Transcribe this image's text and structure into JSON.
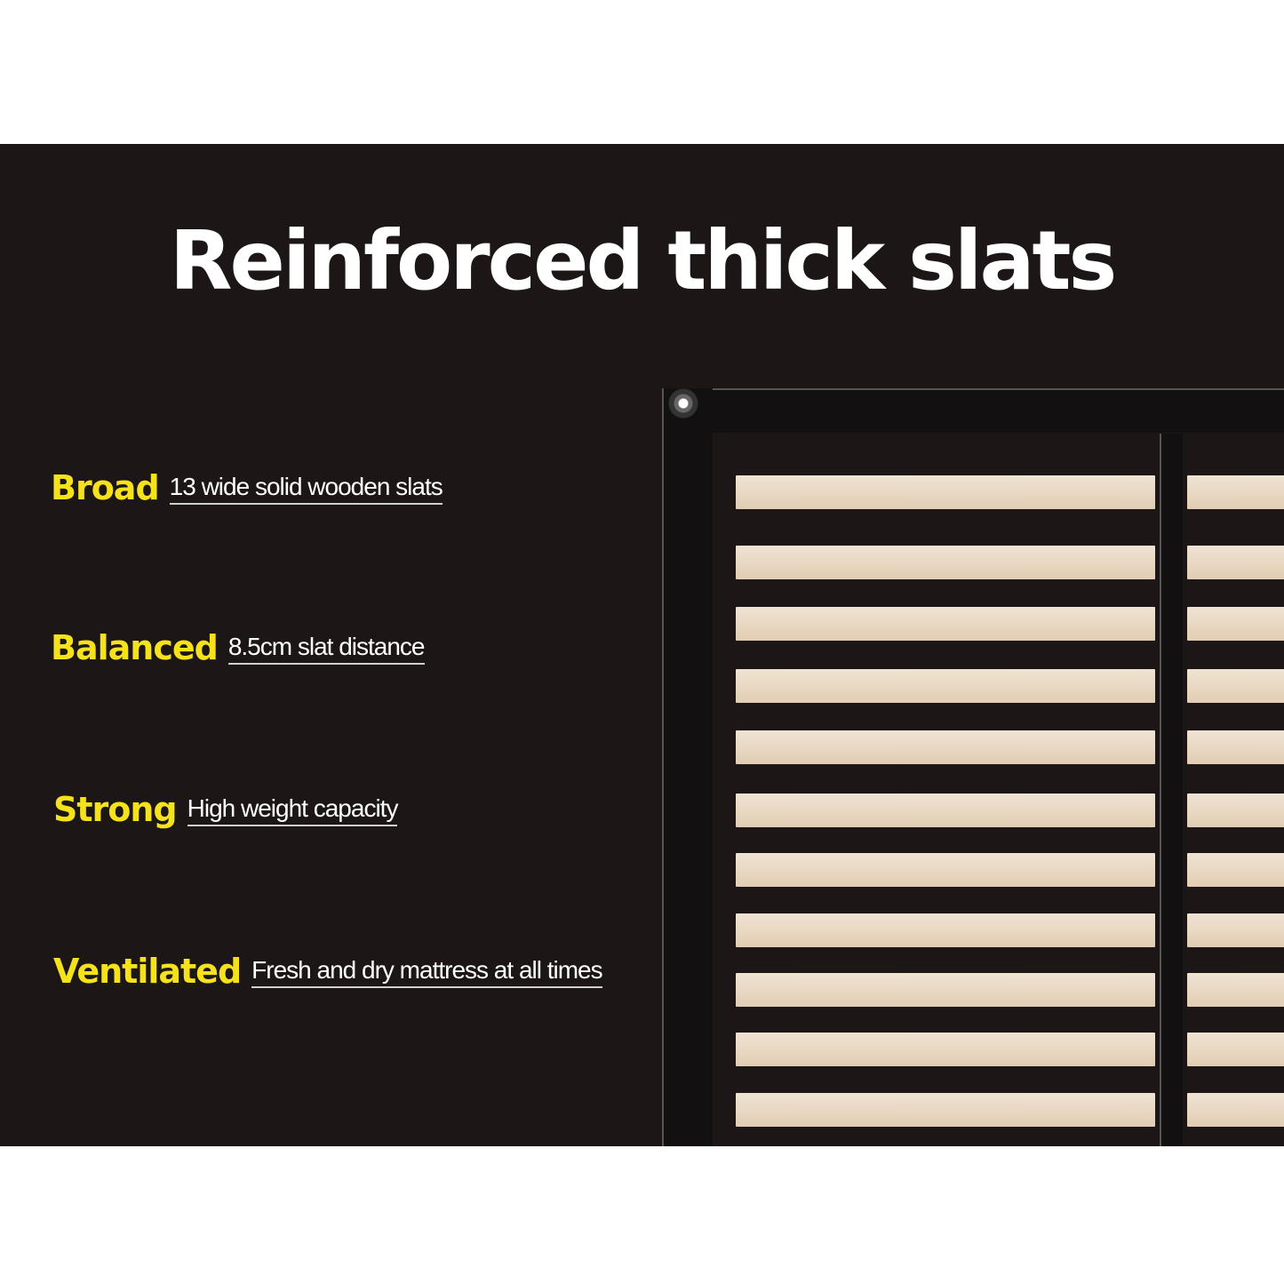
{
  "title": "Reinforced thick slats",
  "features": [
    {
      "label": "Broad",
      "text": "13 wide solid wooden slats"
    },
    {
      "label": "Balanced",
      "text": "8.5cm slat distance"
    },
    {
      "label": "Strong",
      "text": "High weight capacity"
    },
    {
      "label": "Ventilated",
      "text": "Fresh and dry mattress at all times"
    }
  ],
  "colors": {
    "background": "#1c1716",
    "accent": "#f5e21a",
    "slat": "#ead9c4",
    "frame": "#121010"
  }
}
